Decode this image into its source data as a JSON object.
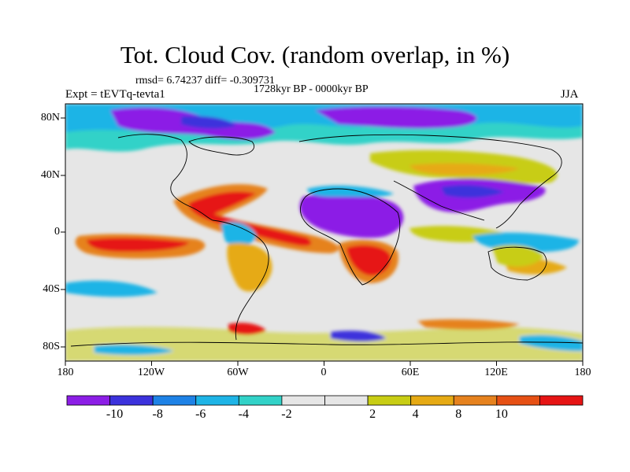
{
  "title": "Tot. Cloud Cov. (random overlap, in %)",
  "stats_text": "rmsd= 6.74237 diff= -0.309731",
  "period_text": "1728kyr BP - 0000kyr BP",
  "expt_text": "Expt = tEVTq-tevta1",
  "season_text": "JJA",
  "map": {
    "projection": "cylindrical equidistant",
    "lon_range": [
      -180,
      180
    ],
    "lat_range": [
      -90,
      90
    ],
    "lat_ticks": [
      "80N",
      "40N",
      "0",
      "40S",
      "80S"
    ],
    "lon_ticks": [
      "180",
      "120W",
      "60W",
      "0",
      "60E",
      "120E",
      "180"
    ],
    "features": [
      {
        "name": "arctic-decrease",
        "color": "#8c1ee6"
      },
      {
        "name": "sahara-decrease",
        "color": "#8c1ee6"
      },
      {
        "name": "asia-decrease",
        "color": "#8c1ee6"
      },
      {
        "name": "tropical-atlantic-increase",
        "color": "#e61e1e"
      },
      {
        "name": "eastern-pacific-increase",
        "color": "#e61e1e"
      },
      {
        "name": "southern-africa-increase",
        "color": "#e61e1e"
      }
    ]
  },
  "colorbar": {
    "colors": [
      "#8c1ee6",
      "#3c32dc",
      "#1e82e6",
      "#1eb4e6",
      "#32d2c8",
      "#e6e6e6",
      "#e6e6e6",
      "#c8cd14",
      "#e6aa14",
      "#e6821e",
      "#e65014",
      "#e61414"
    ],
    "labels": [
      "-10",
      "-8",
      "-6",
      "-4",
      "-2",
      "2",
      "4",
      "8",
      "10"
    ]
  }
}
